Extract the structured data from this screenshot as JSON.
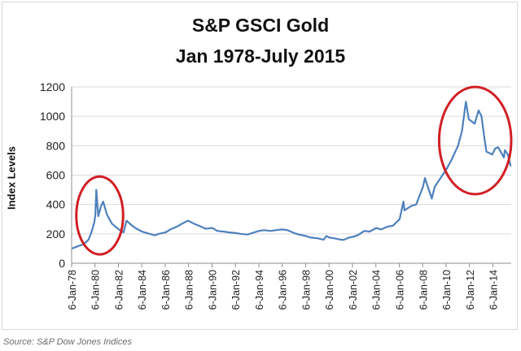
{
  "source_note": "Source: S&P Dow Jones Indices",
  "chart_data": {
    "type": "line",
    "title": "S&P GSCI Gold",
    "subtitle": "Jan 1978-July 2015",
    "ylabel": "Index Levels",
    "xlabel": "",
    "ylim": [
      0,
      1200
    ],
    "yticks": [
      0,
      200,
      400,
      600,
      800,
      1000,
      1200
    ],
    "xlim": [
      "1978-01-06",
      "2015-07-31"
    ],
    "xtick_labels": [
      "6-Jan-78",
      "6-Jan-80",
      "6-Jan-82",
      "6-Jan-84",
      "6-Jan-86",
      "6-Jan-88",
      "6-Jan-90",
      "6-Jan-92",
      "6-Jan-94",
      "6-Jan-96",
      "6-Jan-98",
      "6-Jan-00",
      "6-Jan-02",
      "6-Jan-04",
      "6-Jan-06",
      "6-Jan-08",
      "6-Jan-10",
      "6-Jan-12",
      "6-Jan-14"
    ],
    "grid": "horizontal",
    "line_color": "#4f81bd",
    "highlight_color": "#d01f24",
    "highlights": [
      {
        "x_range": [
          "1978-06-01",
          "1982-06-01"
        ],
        "y_range": [
          60,
          590
        ]
      },
      {
        "x_range": [
          "2009-06-01",
          "2015-07-31"
        ],
        "y_range": [
          470,
          1200
        ]
      }
    ],
    "series": [
      {
        "x": [
          "1978-01",
          "1978-07",
          "1979-01",
          "1979-06",
          "1979-09",
          "1979-12",
          "1980-01",
          "1980-02",
          "1980-04",
          "1980-07",
          "1980-09",
          "1981-01",
          "1981-06",
          "1982-01",
          "1982-06",
          "1982-09",
          "1983-02",
          "1983-06",
          "1984-01",
          "1984-06",
          "1985-02",
          "1985-06",
          "1986-01",
          "1986-06",
          "1987-01",
          "1987-06",
          "1987-12",
          "1988-06",
          "1989-01",
          "1989-06",
          "1990-01",
          "1990-06",
          "1991-01",
          "1991-06",
          "1992-01",
          "1992-06",
          "1993-01",
          "1993-08",
          "1994-01",
          "1994-06",
          "1995-01",
          "1995-06",
          "1996-01",
          "1996-06",
          "1997-01",
          "1997-06",
          "1998-01",
          "1998-06",
          "1999-01",
          "1999-07",
          "1999-10",
          "2000-01",
          "2000-06",
          "2001-01",
          "2001-04",
          "2001-09",
          "2002-01",
          "2002-06",
          "2003-01",
          "2003-06",
          "2004-01",
          "2004-06",
          "2005-01",
          "2005-06",
          "2006-01",
          "2006-05",
          "2006-06",
          "2007-01",
          "2007-06",
          "2008-01",
          "2008-03",
          "2008-06",
          "2008-10",
          "2009-01",
          "2009-06",
          "2010-01",
          "2010-06",
          "2011-01",
          "2011-05",
          "2011-09",
          "2011-12",
          "2012-06",
          "2012-10",
          "2013-01",
          "2013-04",
          "2013-06",
          "2013-12",
          "2014-03",
          "2014-06",
          "2014-12",
          "2015-01",
          "2015-04",
          "2015-07"
        ],
        "y": [
          100,
          115,
          130,
          160,
          210,
          280,
          330,
          500,
          320,
          390,
          420,
          330,
          270,
          230,
          210,
          290,
          260,
          240,
          215,
          205,
          190,
          200,
          210,
          230,
          250,
          270,
          290,
          270,
          250,
          235,
          240,
          220,
          215,
          210,
          205,
          200,
          195,
          210,
          220,
          225,
          220,
          225,
          230,
          225,
          205,
          195,
          185,
          175,
          170,
          160,
          185,
          175,
          170,
          160,
          160,
          175,
          180,
          190,
          220,
          215,
          240,
          230,
          250,
          255,
          300,
          420,
          360,
          390,
          400,
          520,
          580,
          520,
          440,
          520,
          570,
          640,
          700,
          800,
          900,
          1100,
          980,
          950,
          1040,
          1000,
          850,
          760,
          740,
          780,
          790,
          720,
          770,
          740,
          660
        ]
      }
    ]
  }
}
